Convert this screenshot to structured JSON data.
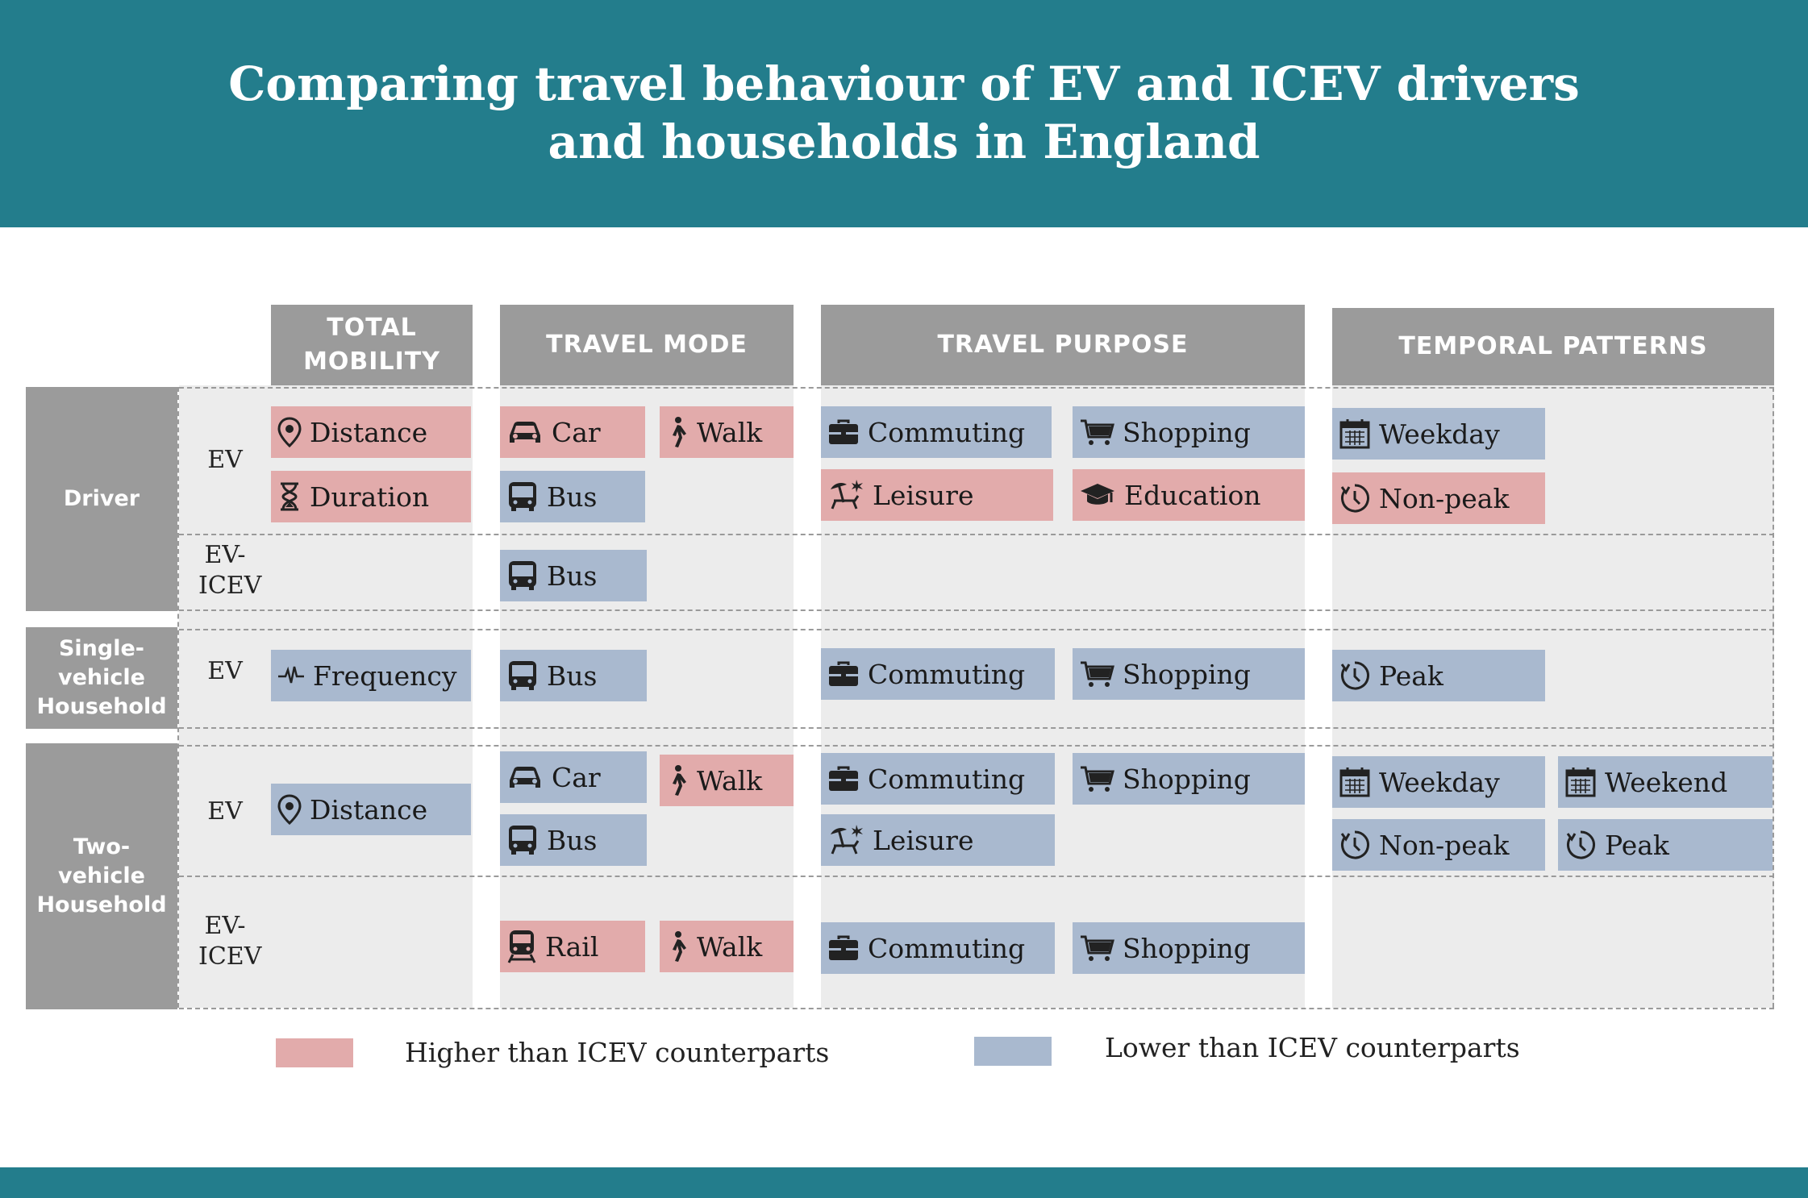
{
  "title": {
    "line1": "Comparing travel behaviour of EV and ICEV drivers",
    "line2": "and households in England"
  },
  "colors": {
    "banner": "#237d8c",
    "higher": "#e2abab",
    "lower": "#a9b9cf",
    "header": "#9b9b9b",
    "panel": "#ececec"
  },
  "columns": {
    "total_mobility": "TOTAL MOBILITY",
    "travel_mode": "TRAVEL MODE",
    "travel_purpose": "TRAVEL PURPOSE",
    "temporal_patterns": "TEMPORAL PATTERNS"
  },
  "rows": {
    "driver": "Driver",
    "single_vehicle": "Single-vehicle Household",
    "two_vehicle": "Two-vehicle Household"
  },
  "sublabels": {
    "ev": "EV",
    "ev_icev": "EV-ICEV"
  },
  "tags": {
    "driver_ev": {
      "distance": "Distance",
      "duration": "Duration",
      "car": "Car",
      "walk": "Walk",
      "bus": "Bus",
      "commuting": "Commuting",
      "shopping": "Shopping",
      "leisure": "Leisure",
      "education": "Education",
      "weekday": "Weekday",
      "nonpeak": "Non-peak"
    },
    "driver_evicev": {
      "bus": "Bus"
    },
    "single_ev": {
      "frequency": "Frequency",
      "bus": "Bus",
      "commuting": "Commuting",
      "shopping": "Shopping",
      "peak": "Peak"
    },
    "two_ev": {
      "distance": "Distance",
      "car": "Car",
      "walk": "Walk",
      "bus": "Bus",
      "commuting": "Commuting",
      "shopping": "Shopping",
      "leisure": "Leisure",
      "weekday": "Weekday",
      "weekend": "Weekend",
      "nonpeak": "Non-peak",
      "peak": "Peak"
    },
    "two_evicev": {
      "rail": "Rail",
      "walk": "Walk",
      "commuting": "Commuting",
      "shopping": "Shopping"
    }
  },
  "legend": {
    "higher": "Higher than ICEV counterparts",
    "lower": "Lower than ICEV counterparts"
  }
}
